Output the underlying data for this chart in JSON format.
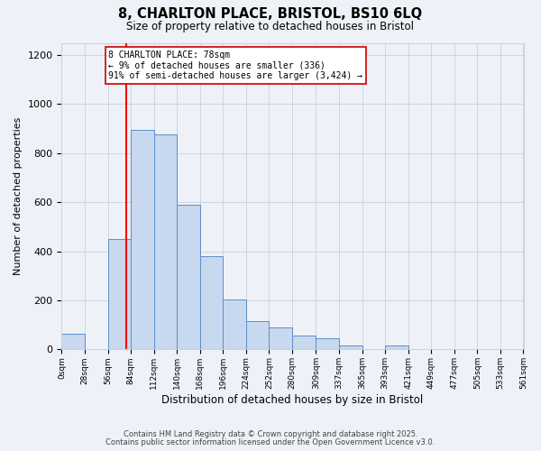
{
  "title": "8, CHARLTON PLACE, BRISTOL, BS10 6LQ",
  "subtitle": "Size of property relative to detached houses in Bristol",
  "xlabel": "Distribution of detached houses by size in Bristol",
  "ylabel": "Number of detached properties",
  "bar_labels": [
    "0sqm",
    "28sqm",
    "56sqm",
    "84sqm",
    "112sqm",
    "140sqm",
    "168sqm",
    "196sqm",
    "224sqm",
    "252sqm",
    "280sqm",
    "309sqm",
    "337sqm",
    "365sqm",
    "393sqm",
    "421sqm",
    "449sqm",
    "477sqm",
    "505sqm",
    "533sqm",
    "561sqm"
  ],
  "bin_edges": [
    0,
    28,
    56,
    84,
    112,
    140,
    168,
    196,
    224,
    252,
    280,
    309,
    337,
    365,
    393,
    421,
    449,
    477,
    505,
    533,
    561
  ],
  "bar_heights": [
    65,
    0,
    450,
    895,
    875,
    590,
    380,
    205,
    115,
    90,
    55,
    45,
    15,
    0,
    15,
    0,
    0,
    0,
    0,
    0
  ],
  "bar_color": "#c8d8ef",
  "bar_edgecolor": "#5b8fc9",
  "grid_color": "#c8d0de",
  "background_color": "#eef2f8",
  "red_line_x": 78,
  "annotation_line1": "8 CHARLTON PLACE: 78sqm",
  "annotation_line2": "← 9% of detached houses are smaller (336)",
  "annotation_line3": "91% of semi-detached houses are larger (3,424) →",
  "annotation_box_facecolor": "#ffffff",
  "annotation_box_edgecolor": "#cc0000",
  "ylim": [
    0,
    1250
  ],
  "yticks": [
    0,
    200,
    400,
    600,
    800,
    1000,
    1200
  ],
  "footer_line1": "Contains HM Land Registry data © Crown copyright and database right 2025.",
  "footer_line2": "Contains public sector information licensed under the Open Government Licence v3.0."
}
